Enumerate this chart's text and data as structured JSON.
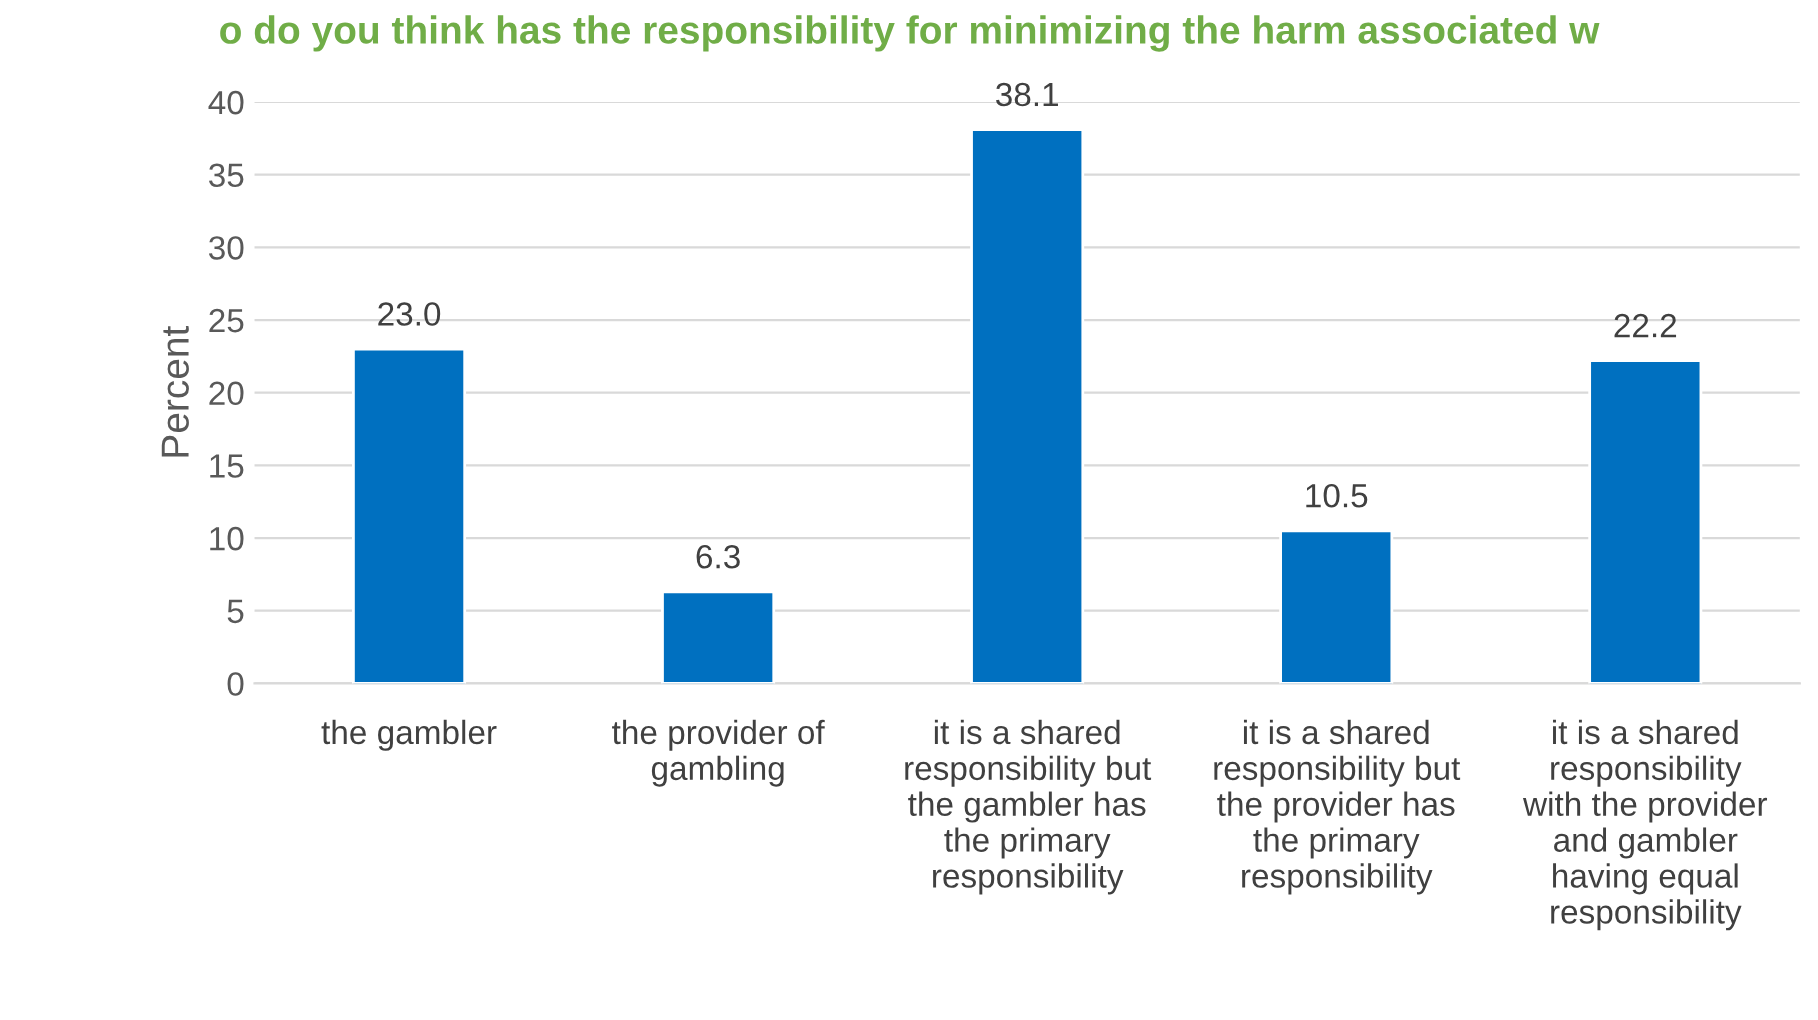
{
  "chart_data": {
    "type": "bar",
    "title": "o do you think has the responsibility for minimizing the harm associated w",
    "ylabel": "Percent",
    "categories": [
      "the gambler",
      "the provider of\ngambling",
      "it is a shared\nresponsibility but\nthe gambler has\nthe primary\nresponsibility",
      "it is a shared\nresponsibility but\nthe provider has\nthe primary\nresponsibility",
      "it is a shared\nresponsibility\nwith the provider\nand gambler\nhaving equal\nresponsibility"
    ],
    "series": [
      {
        "color": "#0070c0",
        "values": [
          23.0,
          6.3,
          38.1,
          10.5,
          22.2
        ]
      }
    ],
    "value_labels": [
      "23.0",
      "6.3",
      "38.1",
      "10.5",
      "22.2"
    ],
    "ylim": [
      0,
      40
    ],
    "yticks": [
      0,
      5,
      10,
      15,
      20,
      25,
      30,
      35,
      40
    ],
    "grid": "y",
    "legend": false
  }
}
